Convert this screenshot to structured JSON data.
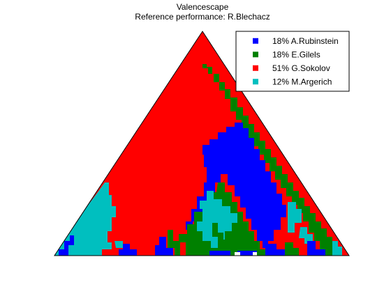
{
  "chart_data": {
    "type": "heatmap",
    "title": "Valencescape",
    "subtitle": "Reference performance: R.Blechacz",
    "legend_position": "top-right",
    "grid": false,
    "series": [
      {
        "name": "18% A.Rubinstein",
        "share_percent": 18,
        "color": "#0000ff"
      },
      {
        "name": "18% E.Gilels",
        "share_percent": 18,
        "color": "#008000"
      },
      {
        "name": "51% G.Sokolov",
        "share_percent": 51,
        "color": "#ff0000"
      },
      {
        "name": "12% M.Argerich",
        "share_percent": 12,
        "color": "#00bfbf"
      }
    ]
  }
}
